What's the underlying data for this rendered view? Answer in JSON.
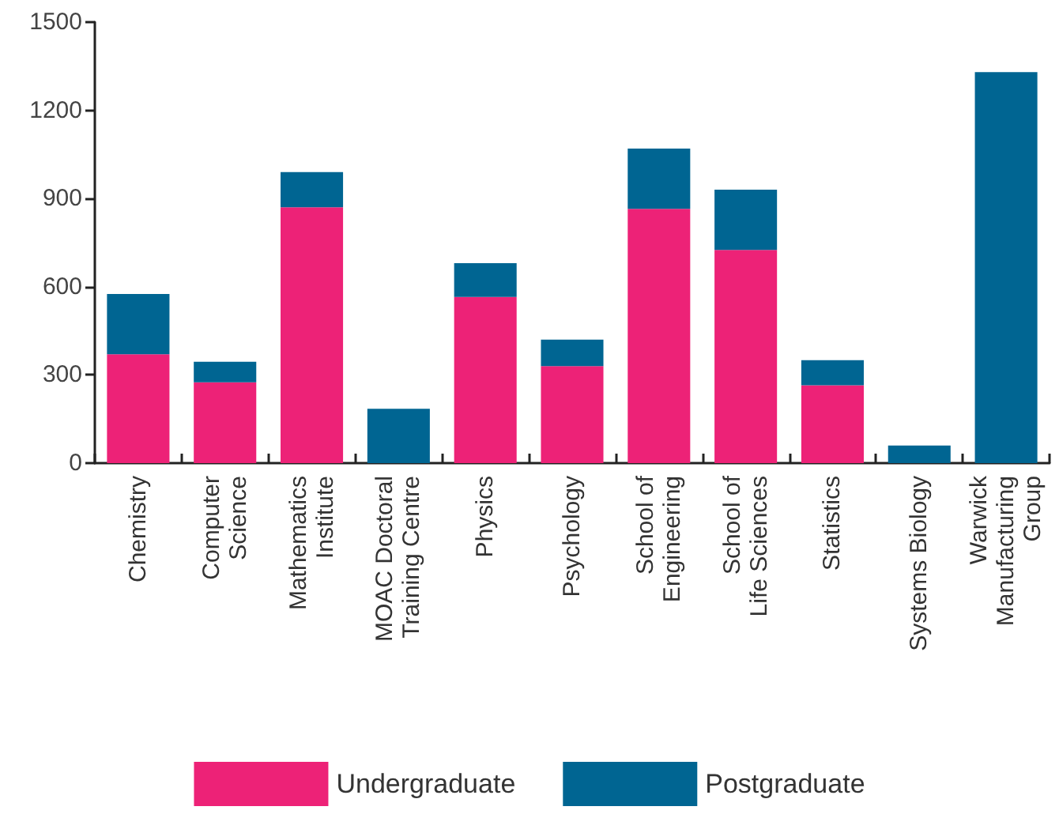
{
  "chart_data": {
    "type": "bar",
    "stacked": true,
    "categories": [
      "Chemistry",
      "Computer\nScience",
      "Mathematics\nInstitute",
      "MOAC Doctoral\nTraining Centre",
      "Physics",
      "Psychology",
      "School of\nEngineering",
      "School of\nLife Sciences",
      "Statistics",
      "Systems Biology",
      "Warwick\nManufacturing\nGroup"
    ],
    "series": [
      {
        "name": "Undergraduate",
        "color": "#ed2277",
        "values": [
          370,
          275,
          870,
          0,
          565,
          330,
          865,
          725,
          265,
          0,
          0
        ]
      },
      {
        "name": "Postgraduate",
        "color": "#006592",
        "values": [
          205,
          70,
          120,
          185,
          115,
          90,
          205,
          205,
          85,
          60,
          1330
        ]
      }
    ],
    "ylim": [
      0,
      1500
    ],
    "yticks": [
      0,
      300,
      600,
      900,
      1200,
      1500
    ],
    "grid": false,
    "legend": "bottom"
  }
}
